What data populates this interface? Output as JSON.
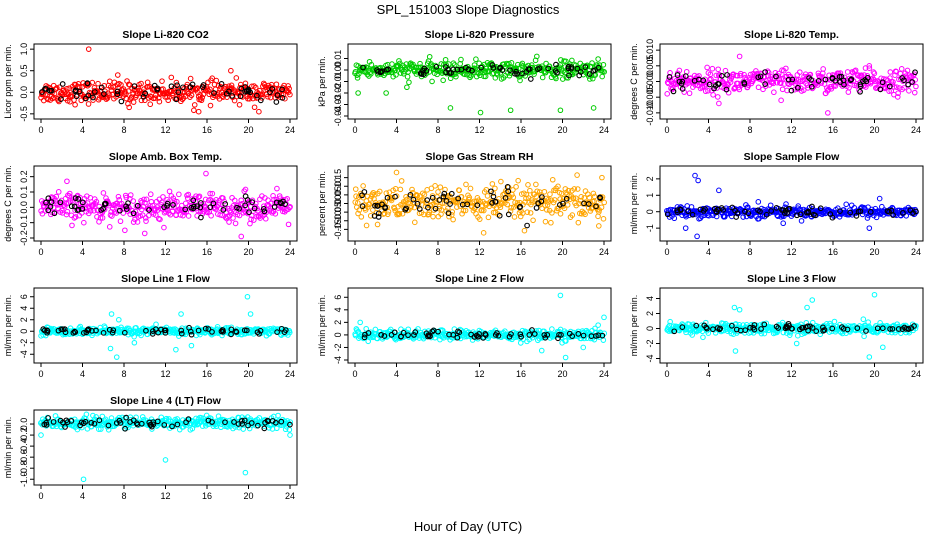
{
  "figure": {
    "title": "SPL_151003  Slope Diagnostics",
    "xlabel": "Hour of Day (UTC)"
  },
  "chart_data": [
    {
      "type": "scatter",
      "title": "Slope Li-820 CO2",
      "ylabel": "Licor ppm per min.",
      "color": "#ff0000",
      "xlim": [
        0,
        24
      ],
      "ylim": [
        -0.55,
        1.05
      ],
      "xticks": [
        "0",
        "4",
        "8",
        "12",
        "16",
        "20",
        "24"
      ],
      "yticks": [
        {
          "v": -0.5,
          "label": "-0.5"
        },
        {
          "v": 0.0,
          "label": "0.0"
        },
        {
          "v": 0.5,
          "label": "0.5"
        },
        {
          "v": 1.0,
          "label": "1.0"
        }
      ],
      "series": [
        {
          "name": "main",
          "center": 0.0,
          "spread": 0.16,
          "outliers": [
            [
              4.6,
              1.0
            ],
            [
              7.4,
              0.4
            ],
            [
              15.2,
              -0.45
            ],
            [
              18.3,
              0.5
            ],
            [
              21.0,
              -0.45
            ],
            [
              8.5,
              -0.35
            ]
          ]
        }
      ]
    },
    {
      "type": "scatter",
      "title": "Slope Li-820 Pressure",
      "ylabel": "kPa per min.",
      "color": "#00cc00",
      "xlim": [
        0,
        24
      ],
      "ylim": [
        -0.04,
        0.02
      ],
      "xticks": [
        "0",
        "4",
        "8",
        "12",
        "16",
        "20",
        "24"
      ],
      "yticks": [
        {
          "v": -0.04,
          "label": "-0.04"
        },
        {
          "v": -0.03,
          "label": "-0.03"
        },
        {
          "v": -0.02,
          "label": "-0.02"
        },
        {
          "v": -0.01,
          "label": "-0.01"
        },
        {
          "v": 0.0,
          "label": "0.00"
        },
        {
          "v": 0.01,
          "label": "0.01"
        }
      ],
      "series": [
        {
          "name": "main",
          "center": 0.0,
          "spread": 0.005,
          "outliers": [
            [
              0.3,
              -0.02
            ],
            [
              3.0,
              -0.02
            ],
            [
              9.2,
              -0.033
            ],
            [
              12.1,
              -0.037
            ],
            [
              15.0,
              -0.035
            ],
            [
              19.8,
              -0.035
            ],
            [
              23.0,
              -0.033
            ],
            [
              5.0,
              -0.015
            ]
          ]
        }
      ]
    },
    {
      "type": "scatter",
      "title": "Slope Li-820 Temp.",
      "ylabel": "degrees C per min.",
      "color": "#ff00ff",
      "xlim": [
        0,
        24
      ],
      "ylim": [
        -0.011,
        0.011
      ],
      "xticks": [
        "0",
        "4",
        "8",
        "12",
        "16",
        "20",
        "24"
      ],
      "yticks": [
        {
          "v": -0.01,
          "label": "-0.010"
        },
        {
          "v": -0.005,
          "label": "-0.005"
        },
        {
          "v": 0.0,
          "label": "0.000"
        },
        {
          "v": 0.005,
          "label": "0.005"
        },
        {
          "v": 0.01,
          "label": "0.010"
        }
      ],
      "series": [
        {
          "name": "main",
          "center": 0.0,
          "spread": 0.0025,
          "outliers": [
            [
              15.5,
              -0.01
            ],
            [
              5.0,
              -0.007
            ],
            [
              7.0,
              0.008
            ],
            [
              19.5,
              0.005
            ],
            [
              11.0,
              -0.006
            ]
          ]
        }
      ]
    },
    {
      "type": "scatter",
      "title": "Slope Amb. Box Temp.",
      "ylabel": "degrees C per min.",
      "color": "#ff00ff",
      "xlim": [
        0,
        24
      ],
      "ylim": [
        -0.2,
        0.25
      ],
      "xticks": [
        "0",
        "4",
        "8",
        "12",
        "16",
        "20",
        "24"
      ],
      "yticks": [
        {
          "v": -0.2,
          "label": "-0.2"
        },
        {
          "v": -0.1,
          "label": "-0.1"
        },
        {
          "v": 0.0,
          "label": "0.0"
        },
        {
          "v": 0.1,
          "label": "0.1"
        },
        {
          "v": 0.2,
          "label": "0.2"
        }
      ],
      "series": [
        {
          "name": "main",
          "center": 0.0,
          "spread": 0.06,
          "outliers": [
            [
              15.9,
              0.22
            ],
            [
              19.3,
              -0.19
            ],
            [
              2.5,
              0.17
            ],
            [
              10.0,
              -0.17
            ]
          ]
        }
      ]
    },
    {
      "type": "scatter",
      "title": "Slope Gas Stream RH",
      "ylabel": "percent per min.",
      "color": "#ffa500",
      "xlim": [
        0,
        24
      ],
      "ylim": [
        -0.2,
        0.2
      ],
      "xticks": [
        "0",
        "4",
        "8",
        "12",
        "16",
        "20",
        "24"
      ],
      "yticks": [
        {
          "v": -0.15,
          "label": "-0.15"
        },
        {
          "v": -0.1,
          "label": "-0.10"
        },
        {
          "v": -0.05,
          "label": "-0.05"
        },
        {
          "v": 0.0,
          "label": "0.00"
        },
        {
          "v": 0.05,
          "label": "0.05"
        },
        {
          "v": 0.1,
          "label": "0.10"
        },
        {
          "v": 0.15,
          "label": "0.15"
        }
      ],
      "series": [
        {
          "name": "main",
          "center": 0.0,
          "spread": 0.07,
          "outliers": [
            [
              23.8,
              0.15
            ],
            [
              4.0,
              0.18
            ],
            [
              12.4,
              -0.17
            ],
            [
              23.5,
              -0.13
            ]
          ]
        }
      ]
    },
    {
      "type": "scatter",
      "title": "Slope Sample Flow",
      "ylabel": "ml/min per min.",
      "color": "#0000ff",
      "xlim": [
        0,
        24
      ],
      "ylim": [
        -1.6,
        2.6
      ],
      "xticks": [
        "0",
        "4",
        "8",
        "12",
        "16",
        "20",
        "24"
      ],
      "yticks": [
        {
          "v": -1,
          "label": "-1"
        },
        {
          "v": 0,
          "label": "0"
        },
        {
          "v": 1,
          "label": "1"
        },
        {
          "v": 2,
          "label": "2"
        }
      ],
      "series": [
        {
          "name": "main",
          "center": 0.0,
          "spread": 0.22,
          "outliers": [
            [
              2.7,
              2.2
            ],
            [
              3.0,
              1.9
            ],
            [
              2.9,
              -1.5
            ],
            [
              5.0,
              1.3
            ],
            [
              1.8,
              -1.0
            ],
            [
              11.2,
              -0.7
            ],
            [
              19.5,
              -1.0
            ],
            [
              20.5,
              0.8
            ],
            [
              8.8,
              0.6
            ]
          ]
        }
      ]
    },
    {
      "type": "scatter",
      "title": "Slope Line 1 Flow",
      "ylabel": "ml/min per min.",
      "color": "#00ffff",
      "xlim": [
        0,
        24
      ],
      "ylim": [
        -5,
        7
      ],
      "xticks": [
        "0",
        "4",
        "8",
        "12",
        "16",
        "20",
        "24"
      ],
      "yticks": [
        {
          "v": -4,
          "label": "-4"
        },
        {
          "v": -2,
          "label": "-2"
        },
        {
          "v": 0,
          "label": "0"
        },
        {
          "v": 2,
          "label": "2"
        },
        {
          "v": 4,
          "label": "4"
        },
        {
          "v": 6,
          "label": "6"
        }
      ],
      "series": [
        {
          "name": "main",
          "center": 0.0,
          "spread": 0.45,
          "outliers": [
            [
              19.9,
              6.0
            ],
            [
              6.8,
              3.0
            ],
            [
              7.5,
              2.0
            ],
            [
              6.7,
              -3.0
            ],
            [
              7.3,
              -4.5
            ],
            [
              13.0,
              -3.2
            ],
            [
              13.5,
              3.0
            ],
            [
              20.2,
              3.0
            ],
            [
              14.5,
              -2.5
            ],
            [
              9.0,
              -2.0
            ]
          ]
        }
      ]
    },
    {
      "type": "scatter",
      "title": "Slope Line 2 Flow",
      "ylabel": "ml/min per min.",
      "color": "#00ffff",
      "xlim": [
        0,
        24
      ],
      "ylim": [
        -4,
        7
      ],
      "xticks": [
        "0",
        "4",
        "8",
        "12",
        "16",
        "20",
        "24"
      ],
      "yticks": [
        {
          "v": -4,
          "label": "-4"
        },
        {
          "v": -2,
          "label": "-2"
        },
        {
          "v": 0,
          "label": "0"
        },
        {
          "v": 2,
          "label": "2"
        },
        {
          "v": 4,
          "label": "4"
        },
        {
          "v": 6,
          "label": "6"
        }
      ],
      "series": [
        {
          "name": "main",
          "center": 0.0,
          "spread": 0.55,
          "outliers": [
            [
              19.8,
              6.3
            ],
            [
              20.3,
              -3.6
            ],
            [
              24.0,
              2.8
            ],
            [
              18.0,
              -2.5
            ],
            [
              22.0,
              -2.0
            ],
            [
              0.5,
              2.0
            ]
          ]
        }
      ]
    },
    {
      "type": "scatter",
      "title": "Slope Line 3 Flow",
      "ylabel": "ml/min per min.",
      "color": "#00ffff",
      "xlim": [
        0,
        24
      ],
      "ylim": [
        -4.2,
        5
      ],
      "xticks": [
        "0",
        "4",
        "8",
        "12",
        "16",
        "20",
        "24"
      ],
      "yticks": [
        {
          "v": -4,
          "label": "-4"
        },
        {
          "v": -2,
          "label": "-2"
        },
        {
          "v": 0,
          "label": "0"
        },
        {
          "v": 2,
          "label": "2"
        },
        {
          "v": 4,
          "label": "4"
        }
      ],
      "series": [
        {
          "name": "main",
          "center": 0.0,
          "spread": 0.5,
          "outliers": [
            [
              20.0,
              4.5
            ],
            [
              6.5,
              2.8
            ],
            [
              7.0,
              2.5
            ],
            [
              6.6,
              -3.0
            ],
            [
              13.5,
              2.8
            ],
            [
              14.0,
              3.8
            ],
            [
              19.5,
              -3.8
            ],
            [
              20.8,
              -2.5
            ],
            [
              12.5,
              -2.0
            ]
          ]
        }
      ]
    },
    {
      "type": "scatter",
      "title": "Slope Line 4 (LT) Flow",
      "ylabel": "ml/min per min.",
      "color": "#00ffff",
      "xlim": [
        0,
        24
      ],
      "ylim": [
        -1.05,
        0.2
      ],
      "xticks": [
        "0",
        "4",
        "8",
        "12",
        "16",
        "20",
        "24"
      ],
      "yticks": [
        {
          "v": -1.0,
          "label": "-1.0"
        },
        {
          "v": -0.8,
          "label": "-0.8"
        },
        {
          "v": -0.6,
          "label": "-0.6"
        },
        {
          "v": -0.4,
          "label": "-0.4"
        },
        {
          "v": -0.2,
          "label": "-0.2"
        },
        {
          "v": 0.0,
          "label": "0.0"
        }
      ],
      "series": [
        {
          "name": "main",
          "center": 0.02,
          "spread": 0.07,
          "outliers": [
            [
              4.1,
              -1.0
            ],
            [
              12.0,
              -0.65
            ],
            [
              19.7,
              -0.88
            ],
            [
              0.0,
              -0.2
            ],
            [
              24.0,
              -0.2
            ]
          ]
        }
      ]
    }
  ]
}
